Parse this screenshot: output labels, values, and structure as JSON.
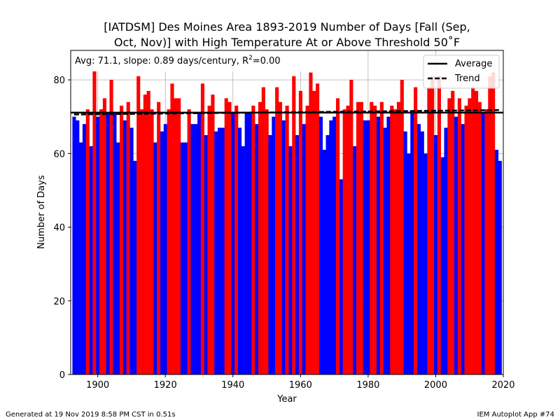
{
  "chart_data": {
    "type": "bar",
    "title_line1": "[IATDSM] Des Moines Area 1893-2019 Number of Days [Fall (Sep,",
    "title_line2": "Oct, Nov)] with High Temperature At or Above Threshold 50˚F",
    "xlabel": "Year",
    "ylabel": "Number of Days",
    "xlim": [
      1892,
      2020
    ],
    "ylim": [
      0,
      88
    ],
    "xticks": [
      1900,
      1920,
      1940,
      1960,
      1980,
      2000,
      2020
    ],
    "yticks": [
      0,
      20,
      40,
      60,
      80
    ],
    "grid": true,
    "stats_prefix": "Avg: 71.1, slope: 0.89 days/century, R",
    "stats_sup": "2",
    "stats_suffix": "=0.00",
    "average": 71.1,
    "trend": {
      "start": [
        1893,
        70.6
      ],
      "end": [
        2019,
        71.8
      ]
    },
    "legend": {
      "position": "top-right",
      "average_label": "Average",
      "trend_label": "Trend"
    },
    "colors": {
      "above": "#ff0000",
      "below": "#0000ff",
      "lines": "#000000"
    },
    "years": [
      1893,
      1894,
      1895,
      1896,
      1897,
      1898,
      1899,
      1900,
      1901,
      1902,
      1903,
      1904,
      1905,
      1906,
      1907,
      1908,
      1909,
      1910,
      1911,
      1912,
      1913,
      1914,
      1915,
      1916,
      1917,
      1918,
      1919,
      1920,
      1921,
      1922,
      1923,
      1924,
      1925,
      1926,
      1927,
      1928,
      1929,
      1930,
      1931,
      1932,
      1933,
      1934,
      1935,
      1936,
      1937,
      1938,
      1939,
      1940,
      1941,
      1942,
      1943,
      1944,
      1945,
      1946,
      1947,
      1948,
      1949,
      1950,
      1951,
      1952,
      1953,
      1954,
      1955,
      1956,
      1957,
      1958,
      1959,
      1960,
      1961,
      1962,
      1963,
      1964,
      1965,
      1966,
      1967,
      1968,
      1969,
      1970,
      1971,
      1972,
      1973,
      1974,
      1975,
      1976,
      1977,
      1978,
      1979,
      1980,
      1981,
      1982,
      1983,
      1984,
      1985,
      1986,
      1987,
      1988,
      1989,
      1990,
      1991,
      1992,
      1993,
      1994,
      1995,
      1996,
      1997,
      1998,
      1999,
      2000,
      2001,
      2002,
      2003,
      2004,
      2005,
      2006,
      2007,
      2008,
      2009,
      2010,
      2011,
      2012,
      2013,
      2014,
      2015,
      2016,
      2017,
      2018,
      2019
    ],
    "values": [
      70,
      69,
      63,
      68,
      72,
      62,
      83,
      70,
      72,
      75,
      71,
      80,
      71,
      63,
      73,
      69,
      74,
      67,
      58,
      81,
      72,
      76,
      77,
      72,
      63,
      74,
      66,
      68,
      72,
      79,
      75,
      75,
      63,
      63,
      72,
      68,
      68,
      71,
      79,
      65,
      73,
      76,
      66,
      67,
      67,
      75,
      74,
      71,
      73,
      67,
      62,
      71,
      71,
      73,
      68,
      74,
      78,
      72,
      65,
      70,
      78,
      74,
      69,
      73,
      62,
      81,
      65,
      77,
      68,
      73,
      82,
      77,
      79,
      70,
      61,
      65,
      69,
      70,
      75,
      53,
      72,
      73,
      80,
      62,
      74,
      74,
      69,
      69,
      74,
      73,
      70,
      74,
      67,
      70,
      73,
      72,
      74,
      80,
      66,
      60,
      71,
      78,
      68,
      66,
      60,
      78,
      81,
      65,
      81,
      59,
      67,
      75,
      77,
      70,
      75,
      68,
      73,
      75,
      78,
      77,
      74,
      71,
      72,
      81,
      82,
      61,
      58
    ]
  },
  "footer": {
    "left": "Generated at 19 Nov 2019 8:58 PM CST in 0.51s",
    "right": "IEM Autoplot App #74"
  }
}
